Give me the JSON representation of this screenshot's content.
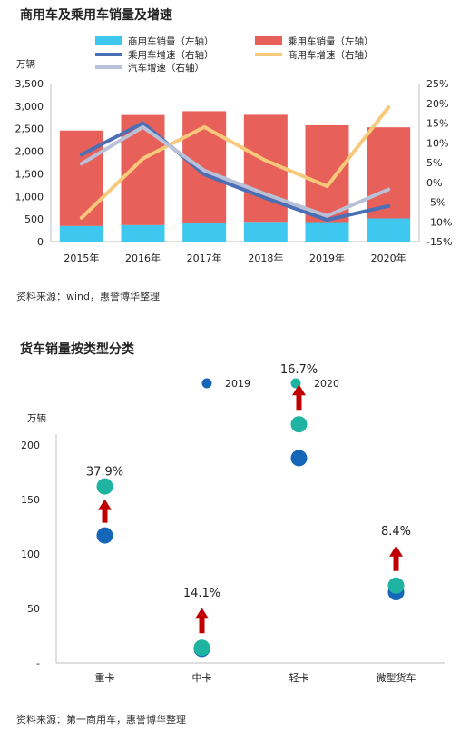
{
  "chart1_title": "商用车及乘用车销量及增速",
  "chart1_source": "资料来源：wind，惠誉博华整理",
  "chart2_title": "货车销量按类型分类",
  "chart2_source": "资料来源：第一商用车，惠誉博华整理",
  "chart_data": [
    {
      "type": "bar",
      "title": "商用车及乘用车销量及增速",
      "y_unit": "万辆",
      "categories": [
        "2015年",
        "2016年",
        "2017年",
        "2018年",
        "2019年",
        "2020年"
      ],
      "stacked": true,
      "ylim": [
        0,
        3500
      ],
      "yticks": [
        "0",
        "500",
        "1,000",
        "1,500",
        "2,000",
        "2,500",
        "3,000",
        "3,500"
      ],
      "y2lim": [
        -15,
        25
      ],
      "y2ticks": [
        "-15%",
        "-10%",
        "-5%",
        "0%",
        "5%",
        "10%",
        "15%",
        "20%",
        "25%"
      ],
      "grid": false,
      "legend_position": "top",
      "series": [
        {
          "name": "商用车销量（左轴）",
          "kind": "bar",
          "axis": "left",
          "color": "#3ec8f0",
          "values": [
            345,
            365,
            416,
            437,
            432,
            513
          ]
        },
        {
          "name": "乘用车销量（左轴）",
          "kind": "bar",
          "axis": "left",
          "color": "#e8605a",
          "values": [
            2115,
            2438,
            2472,
            2371,
            2144,
            2018
          ]
        },
        {
          "name": "乘用车增速（右轴）",
          "kind": "line",
          "axis": "right",
          "color": "#4a6fb5",
          "values": [
            7,
            15,
            2,
            -4,
            -9.5,
            -6
          ]
        },
        {
          "name": "商用车增速（右轴）",
          "kind": "line",
          "axis": "right",
          "color": "#f8c97a",
          "values": [
            -9,
            6,
            14,
            5.5,
            -1,
            19
          ]
        },
        {
          "name": "汽车增速（右轴）",
          "kind": "line",
          "axis": "right",
          "color": "#b9c1d9",
          "values": [
            4.7,
            14,
            3,
            -3,
            -8.5,
            -1.8
          ]
        }
      ]
    },
    {
      "type": "scatter",
      "title": "货车销量按类型分类",
      "y_unit": "万辆",
      "categories": [
        "重卡",
        "中卡",
        "轻卡",
        "微型货车"
      ],
      "ylim": [
        0,
        225
      ],
      "yticks": [
        "-",
        "50",
        "100",
        "150",
        "200"
      ],
      "grid": false,
      "legend_position": "top",
      "series": [
        {
          "name": "2019",
          "color": "#1565b8",
          "values": [
            117,
            13,
            188,
            65
          ]
        },
        {
          "name": "2020",
          "color": "#1fb3a2",
          "values": [
            162,
            14,
            219,
            71
          ]
        }
      ],
      "growth_labels": [
        "37.9%",
        "14.1%",
        "16.7%",
        "8.4%"
      ]
    }
  ]
}
